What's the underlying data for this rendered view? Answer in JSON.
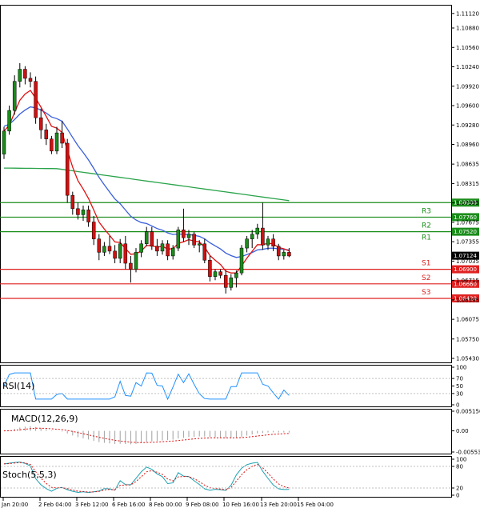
{
  "chart_data": {
    "type": "candlestick",
    "symbol": "EURUSD",
    "price_axis": {
      "ylim": [
        1.0543,
        1.1121
      ],
      "ticks": [
        "1.11120",
        "1.10880",
        "1.10560",
        "1.10240",
        "1.09920",
        "1.09600",
        "1.09280",
        "1.08960",
        "1.08635",
        "1.08315",
        "1.07995",
        "1.07675",
        "1.07355",
        "1.07035",
        "1.06715",
        "1.06395",
        "1.06075",
        "1.05750",
        "1.05430"
      ]
    },
    "time_axis": {
      "ticks": [
        "Jan 20:00",
        "2 Feb 04:00",
        "3 Feb 12:00",
        "6 Feb 16:00",
        "8 Feb 00:00",
        "9 Feb 08:00",
        "10 Feb 16:00",
        "13 Feb 20:00",
        "15 Feb 04:00"
      ]
    },
    "current_price": "1.07124",
    "levels": [
      {
        "name": "",
        "value": 1.08,
        "label": "1.08000",
        "color": "#1a8c1a"
      },
      {
        "name": "R3",
        "value": 1.0776,
        "label": "1.07760",
        "color": "#1a8c1a"
      },
      {
        "name": "R2",
        "value": 1.0752,
        "label": "1.07520",
        "color": "#1a8c1a"
      },
      {
        "name": "R1",
        "value": 1.0752,
        "label": "",
        "color": "#1a8c1a"
      },
      {
        "name": "S1",
        "value": 1.069,
        "label": "1.06900",
        "color": "#e02020"
      },
      {
        "name": "S2",
        "value": 1.0666,
        "label": "1.06660",
        "color": "#e02020"
      },
      {
        "name": "S3",
        "value": 1.0642,
        "label": "1.06420",
        "color": "#e02020"
      }
    ],
    "candles_ohlc": [
      [
        1.088,
        1.0925,
        1.0872,
        1.0918
      ],
      [
        1.0918,
        1.096,
        1.0912,
        1.0952
      ],
      [
        1.0952,
        1.101,
        1.0945,
        1.1
      ],
      [
        1.1,
        1.103,
        1.099,
        1.102
      ],
      [
        1.102,
        1.1025,
        1.0995,
        1.1005
      ],
      [
        1.1005,
        1.1015,
        1.099,
        1.1
      ],
      [
        1.1,
        1.1008,
        1.093,
        1.094
      ],
      [
        1.094,
        1.0955,
        1.0905,
        1.092
      ],
      [
        1.092,
        1.093,
        1.0895,
        1.0905
      ],
      [
        1.0905,
        1.091,
        1.088,
        1.0885
      ],
      [
        1.0885,
        1.0925,
        1.088,
        1.0915
      ],
      [
        1.0915,
        1.0935,
        1.089,
        1.0898
      ],
      [
        1.0898,
        1.0905,
        1.08,
        1.0812
      ],
      [
        1.0812,
        1.0818,
        1.078,
        1.079
      ],
      [
        1.079,
        1.08,
        1.0772,
        1.078
      ],
      [
        1.078,
        1.0795,
        1.077,
        1.0788
      ],
      [
        1.0788,
        1.0795,
        1.076,
        1.0768
      ],
      [
        1.0768,
        1.0778,
        1.073,
        1.074
      ],
      [
        1.074,
        1.0748,
        1.0705,
        1.0718
      ],
      [
        1.0718,
        1.0735,
        1.0712,
        1.0728
      ],
      [
        1.0728,
        1.0745,
        1.0715,
        1.072
      ],
      [
        1.072,
        1.073,
        1.07,
        1.0708
      ],
      [
        1.0708,
        1.074,
        1.07,
        1.0732
      ],
      [
        1.0732,
        1.0745,
        1.069,
        1.07
      ],
      [
        1.07,
        1.0712,
        1.0668,
        1.069
      ],
      [
        1.069,
        1.0725,
        1.0685,
        1.0718
      ],
      [
        1.0718,
        1.0738,
        1.071,
        1.0732
      ],
      [
        1.0732,
        1.076,
        1.0728,
        1.0752
      ],
      [
        1.0752,
        1.076,
        1.0722,
        1.0728
      ],
      [
        1.0728,
        1.074,
        1.0712,
        1.072
      ],
      [
        1.072,
        1.0738,
        1.0714,
        1.0732
      ],
      [
        1.0732,
        1.0738,
        1.0705,
        1.0712
      ],
      [
        1.0712,
        1.073,
        1.0706,
        1.0725
      ],
      [
        1.0725,
        1.076,
        1.072,
        1.0755
      ],
      [
        1.0755,
        1.079,
        1.0735,
        1.0742
      ],
      [
        1.0742,
        1.0755,
        1.073,
        1.0748
      ],
      [
        1.0748,
        1.0752,
        1.0725,
        1.073
      ],
      [
        1.073,
        1.0738,
        1.0718,
        1.0732
      ],
      [
        1.0732,
        1.074,
        1.07,
        1.0705
      ],
      [
        1.0705,
        1.0712,
        1.067,
        1.0678
      ],
      [
        1.0678,
        1.069,
        1.0672,
        1.0686
      ],
      [
        1.0686,
        1.069,
        1.0675,
        1.068
      ],
      [
        1.068,
        1.0688,
        1.065,
        1.066
      ],
      [
        1.066,
        1.0682,
        1.0655,
        1.0676
      ],
      [
        1.0676,
        1.0688,
        1.066,
        1.0684
      ],
      [
        1.0684,
        1.073,
        1.068,
        1.0725
      ],
      [
        1.0725,
        1.0745,
        1.0718,
        1.074
      ],
      [
        1.074,
        1.0755,
        1.0725,
        1.0748
      ],
      [
        1.0748,
        1.0765,
        1.074,
        1.0758
      ],
      [
        1.0758,
        1.08,
        1.0722,
        1.073
      ],
      [
        1.073,
        1.0745,
        1.0722,
        1.074
      ],
      [
        1.074,
        1.0748,
        1.072,
        1.0728
      ],
      [
        1.0728,
        1.0732,
        1.0705,
        1.0712
      ],
      [
        1.0712,
        1.0722,
        1.0706,
        1.0718
      ],
      [
        1.0718,
        1.0725,
        1.071,
        1.0712
      ]
    ],
    "ma_fast_color": "#e01010",
    "ma_slow_color": "#3a5fdc",
    "ma_200_color": "#2aa34a",
    "rsi": {
      "label": "RSI(14)",
      "ticks": [
        "100",
        "70",
        "50",
        "30",
        "0"
      ],
      "color": "#1e90ff"
    },
    "macd": {
      "label": "MACD(12,26,9)",
      "ticks": [
        "0.005150",
        "0.00",
        "-0.005537"
      ],
      "hist_color": "#a0a0a0",
      "signal_color": "#e01010"
    },
    "stoch": {
      "label": "Stoch(5,5,3)",
      "ticks": [
        "100",
        "80",
        "20",
        "0"
      ],
      "k_color": "#1aa0b0",
      "d_color": "#e01010"
    }
  }
}
